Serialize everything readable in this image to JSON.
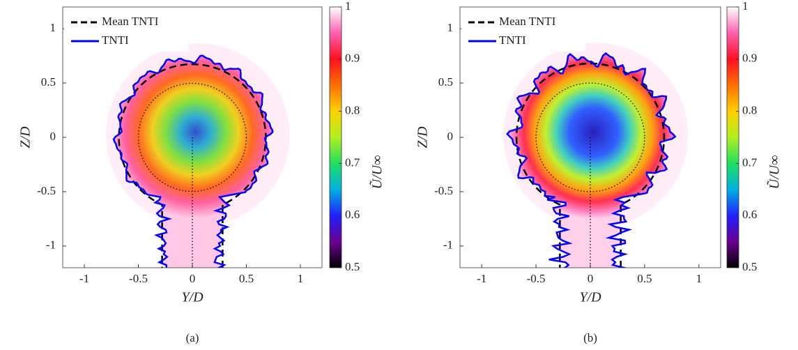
{
  "chart_data": [
    {
      "type": "contour",
      "panel_label": "(a)",
      "xlabel": "Y/D",
      "ylabel": "Z/D",
      "colorbar_label": "Ũ/U∞",
      "xlim": [
        -1.2,
        1.2
      ],
      "ylim": [
        -1.2,
        1.2
      ],
      "xticks": [
        -1,
        -0.5,
        0,
        0.5,
        1
      ],
      "yticks": [
        -1,
        -0.5,
        0,
        0.5,
        1
      ],
      "clim": [
        0.5,
        1
      ],
      "cticks": [
        0.5,
        0.6,
        0.7,
        0.8,
        0.9,
        1
      ],
      "series": [
        {
          "name": "Mean TNTI",
          "color": "#000000"
        },
        {
          "name": "TNTI",
          "color": "#0000ff"
        }
      ]
    },
    {
      "type": "contour",
      "panel_label": "(b)",
      "xlabel": "Y/D",
      "ylabel": "Z/D",
      "colorbar_label": "Ũ/U∞",
      "xlim": [
        -1.2,
        1.2
      ],
      "ylim": [
        -1.2,
        1.2
      ],
      "xticks": [
        -1,
        -0.5,
        0,
        0.5,
        1
      ],
      "yticks": [
        -1,
        -0.5,
        0,
        0.5,
        1
      ],
      "clim": [
        0.5,
        1
      ],
      "cticks": [
        0.5,
        0.6,
        0.7,
        0.8,
        0.9,
        1
      ],
      "series": [
        {
          "name": "Mean TNTI",
          "color": "#000000"
        },
        {
          "name": "TNTI",
          "color": "#0000ff"
        }
      ]
    }
  ]
}
